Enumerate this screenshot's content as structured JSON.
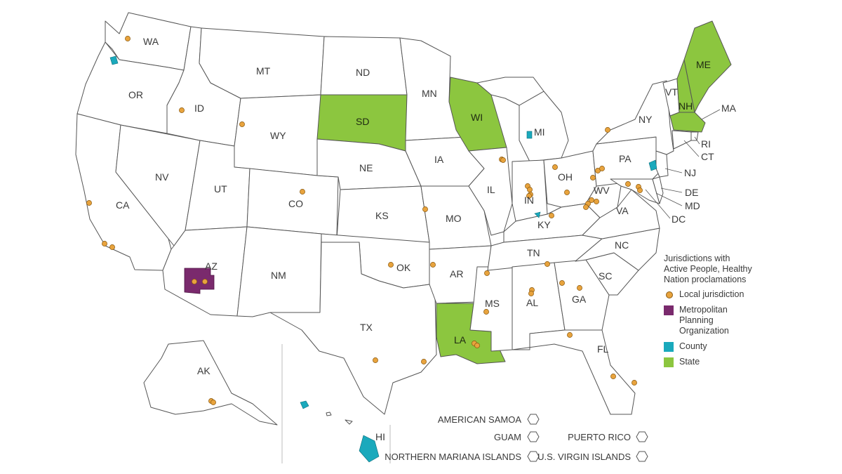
{
  "colors": {
    "state": "#8cc63f",
    "county": "#1aa9bc",
    "mpo": "#7a2a6d",
    "local": "#e8a33d",
    "outline": "#555555"
  },
  "state_labels": {
    "WA": "WA",
    "OR": "OR",
    "CA": "CA",
    "NV": "NV",
    "ID": "ID",
    "MT": "MT",
    "WY": "WY",
    "UT": "UT",
    "AZ": "AZ",
    "CO": "CO",
    "NM": "NM",
    "ND": "ND",
    "SD": "SD",
    "NE": "NE",
    "KS": "KS",
    "OK": "OK",
    "TX": "TX",
    "MN": "MN",
    "IA": "IA",
    "MO": "MO",
    "AR": "AR",
    "LA": "LA",
    "WI": "WI",
    "IL": "IL",
    "MS": "MS",
    "MI": "MI",
    "IN": "IN",
    "KY": "KY",
    "TN": "TN",
    "AL": "AL",
    "OH": "OH",
    "WV": "WV",
    "GA": "GA",
    "FL": "FL",
    "SC": "SC",
    "NC": "NC",
    "VA": "VA",
    "PA": "PA",
    "NY": "NY",
    "VT": "VT",
    "NH": "NH",
    "ME": "ME",
    "MA": "MA",
    "RI": "RI",
    "CT": "CT",
    "NJ": "NJ",
    "DE": "DE",
    "MD": "MD",
    "DC": "DC",
    "AK": "AK",
    "HI": "HI"
  },
  "states_by_category": {
    "State": [
      "SD",
      "WI",
      "LA",
      "ME",
      "NH"
    ],
    "County": [
      "WA",
      "MI",
      "KY",
      "NJ",
      "HI"
    ],
    "Metropolitan Planning Organization": [
      "AZ"
    ]
  },
  "territories": {
    "american_samoa": "AMERICAN SAMOA",
    "guam": "GUAM",
    "northern_mariana_islands": "NORTHERN MARIANA ISLANDS",
    "puerto_rico": "PUERTO RICO",
    "us_virgin_islands": "U.S. VIRGIN ISLANDS"
  },
  "legend": {
    "title": "Jurisdictions with Active People, Healthy Nation proclamations",
    "items": [
      {
        "label": "Local jurisdiction",
        "symbol": "circle",
        "color": "#e8a33d"
      },
      {
        "label": "Metropolitan Planning Organization",
        "symbol": "square",
        "color": "#7a2a6d"
      },
      {
        "label": "County",
        "symbol": "square",
        "color": "#1aa9bc"
      },
      {
        "label": "State",
        "symbol": "square",
        "color": "#8cc63f"
      }
    ]
  }
}
